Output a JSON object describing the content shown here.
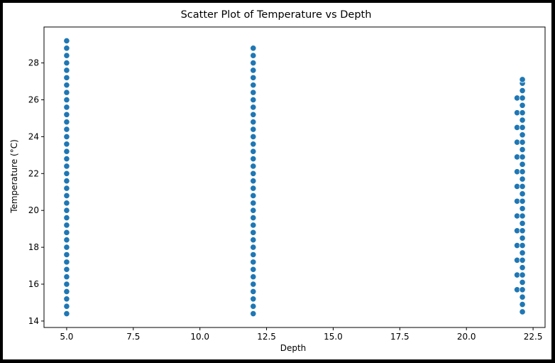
{
  "chart_data": {
    "type": "scatter",
    "title": "Scatter Plot of Temperature vs Depth",
    "xlabel": "Depth",
    "ylabel": "Temperature (°C)",
    "xlim": [
      4.15,
      22.95
    ],
    "ylim": [
      13.65,
      29.95
    ],
    "xticks": [
      5.0,
      7.5,
      10.0,
      12.5,
      15.0,
      17.5,
      20.0,
      22.5
    ],
    "xtick_labels": [
      "5.0",
      "7.5",
      "10.0",
      "12.5",
      "15.0",
      "17.5",
      "20.0",
      "22.5"
    ],
    "yticks": [
      14,
      16,
      18,
      20,
      22,
      24,
      26,
      28
    ],
    "ytick_labels": [
      "14",
      "16",
      "18",
      "20",
      "22",
      "24",
      "26",
      "28"
    ],
    "grid": false,
    "marker_color": "#1f77b4",
    "marker_edge_color": "#ffffff",
    "series": [
      {
        "points": [
          {
            "x": 5.0,
            "y": 14.4
          },
          {
            "x": 5.0,
            "y": 14.8
          },
          {
            "x": 5.0,
            "y": 15.2
          },
          {
            "x": 5.0,
            "y": 15.6
          },
          {
            "x": 5.0,
            "y": 16.0
          },
          {
            "x": 5.0,
            "y": 16.4
          },
          {
            "x": 5.0,
            "y": 16.8
          },
          {
            "x": 5.0,
            "y": 17.2
          },
          {
            "x": 5.0,
            "y": 17.6
          },
          {
            "x": 5.0,
            "y": 18.0
          },
          {
            "x": 5.0,
            "y": 18.4
          },
          {
            "x": 5.0,
            "y": 18.8
          },
          {
            "x": 5.0,
            "y": 19.2
          },
          {
            "x": 5.0,
            "y": 19.6
          },
          {
            "x": 5.0,
            "y": 20.0
          },
          {
            "x": 5.0,
            "y": 20.4
          },
          {
            "x": 5.0,
            "y": 20.8
          },
          {
            "x": 5.0,
            "y": 21.2
          },
          {
            "x": 5.0,
            "y": 21.6
          },
          {
            "x": 5.0,
            "y": 22.0
          },
          {
            "x": 5.0,
            "y": 22.4
          },
          {
            "x": 5.0,
            "y": 22.8
          },
          {
            "x": 5.0,
            "y": 23.2
          },
          {
            "x": 5.0,
            "y": 23.6
          },
          {
            "x": 5.0,
            "y": 24.0
          },
          {
            "x": 5.0,
            "y": 24.4
          },
          {
            "x": 5.0,
            "y": 24.8
          },
          {
            "x": 5.0,
            "y": 25.2
          },
          {
            "x": 5.0,
            "y": 25.6
          },
          {
            "x": 5.0,
            "y": 26.0
          },
          {
            "x": 5.0,
            "y": 26.4
          },
          {
            "x": 5.0,
            "y": 26.8
          },
          {
            "x": 5.0,
            "y": 27.2
          },
          {
            "x": 5.0,
            "y": 27.6
          },
          {
            "x": 5.0,
            "y": 28.0
          },
          {
            "x": 5.0,
            "y": 28.4
          },
          {
            "x": 5.0,
            "y": 28.8
          },
          {
            "x": 5.0,
            "y": 29.2
          },
          {
            "x": 12.0,
            "y": 14.4
          },
          {
            "x": 12.0,
            "y": 14.8
          },
          {
            "x": 12.0,
            "y": 15.2
          },
          {
            "x": 12.0,
            "y": 15.6
          },
          {
            "x": 12.0,
            "y": 16.0
          },
          {
            "x": 12.0,
            "y": 16.4
          },
          {
            "x": 12.0,
            "y": 16.8
          },
          {
            "x": 12.0,
            "y": 17.2
          },
          {
            "x": 12.0,
            "y": 17.6
          },
          {
            "x": 12.0,
            "y": 18.0
          },
          {
            "x": 12.0,
            "y": 18.4
          },
          {
            "x": 12.0,
            "y": 18.8
          },
          {
            "x": 12.0,
            "y": 19.2
          },
          {
            "x": 12.0,
            "y": 19.6
          },
          {
            "x": 12.0,
            "y": 20.0
          },
          {
            "x": 12.0,
            "y": 20.4
          },
          {
            "x": 12.0,
            "y": 20.8
          },
          {
            "x": 12.0,
            "y": 21.2
          },
          {
            "x": 12.0,
            "y": 21.6
          },
          {
            "x": 12.0,
            "y": 22.0
          },
          {
            "x": 12.0,
            "y": 22.4
          },
          {
            "x": 12.0,
            "y": 22.8
          },
          {
            "x": 12.0,
            "y": 23.2
          },
          {
            "x": 12.0,
            "y": 23.6
          },
          {
            "x": 12.0,
            "y": 24.0
          },
          {
            "x": 12.0,
            "y": 24.4
          },
          {
            "x": 12.0,
            "y": 24.8
          },
          {
            "x": 12.0,
            "y": 25.2
          },
          {
            "x": 12.0,
            "y": 25.6
          },
          {
            "x": 12.0,
            "y": 26.0
          },
          {
            "x": 12.0,
            "y": 26.4
          },
          {
            "x": 12.0,
            "y": 26.8
          },
          {
            "x": 12.0,
            "y": 27.2
          },
          {
            "x": 12.0,
            "y": 27.6
          },
          {
            "x": 12.0,
            "y": 28.0
          },
          {
            "x": 12.0,
            "y": 28.4
          },
          {
            "x": 12.0,
            "y": 28.8
          },
          {
            "x": 21.9,
            "y": 15.7
          },
          {
            "x": 21.9,
            "y": 16.5
          },
          {
            "x": 21.9,
            "y": 17.3
          },
          {
            "x": 21.9,
            "y": 18.1
          },
          {
            "x": 21.9,
            "y": 18.9
          },
          {
            "x": 21.9,
            "y": 19.7
          },
          {
            "x": 21.9,
            "y": 20.5
          },
          {
            "x": 21.9,
            "y": 21.3
          },
          {
            "x": 21.9,
            "y": 22.1
          },
          {
            "x": 21.9,
            "y": 22.9
          },
          {
            "x": 21.9,
            "y": 23.7
          },
          {
            "x": 21.9,
            "y": 24.5
          },
          {
            "x": 21.9,
            "y": 25.3
          },
          {
            "x": 21.9,
            "y": 26.1
          },
          {
            "x": 22.1,
            "y": 14.5
          },
          {
            "x": 22.1,
            "y": 14.9
          },
          {
            "x": 22.1,
            "y": 15.3
          },
          {
            "x": 22.1,
            "y": 15.7
          },
          {
            "x": 22.1,
            "y": 16.1
          },
          {
            "x": 22.1,
            "y": 16.5
          },
          {
            "x": 22.1,
            "y": 16.9
          },
          {
            "x": 22.1,
            "y": 17.3
          },
          {
            "x": 22.1,
            "y": 17.7
          },
          {
            "x": 22.1,
            "y": 18.1
          },
          {
            "x": 22.1,
            "y": 18.5
          },
          {
            "x": 22.1,
            "y": 18.9
          },
          {
            "x": 22.1,
            "y": 19.3
          },
          {
            "x": 22.1,
            "y": 19.7
          },
          {
            "x": 22.1,
            "y": 20.1
          },
          {
            "x": 22.1,
            "y": 20.5
          },
          {
            "x": 22.1,
            "y": 20.9
          },
          {
            "x": 22.1,
            "y": 21.3
          },
          {
            "x": 22.1,
            "y": 21.7
          },
          {
            "x": 22.1,
            "y": 22.1
          },
          {
            "x": 22.1,
            "y": 22.5
          },
          {
            "x": 22.1,
            "y": 22.9
          },
          {
            "x": 22.1,
            "y": 23.3
          },
          {
            "x": 22.1,
            "y": 23.7
          },
          {
            "x": 22.1,
            "y": 24.1
          },
          {
            "x": 22.1,
            "y": 24.5
          },
          {
            "x": 22.1,
            "y": 24.9
          },
          {
            "x": 22.1,
            "y": 25.3
          },
          {
            "x": 22.1,
            "y": 25.7
          },
          {
            "x": 22.1,
            "y": 26.1
          },
          {
            "x": 22.1,
            "y": 26.5
          },
          {
            "x": 22.1,
            "y": 26.9
          },
          {
            "x": 22.1,
            "y": 27.1
          }
        ]
      }
    ]
  }
}
